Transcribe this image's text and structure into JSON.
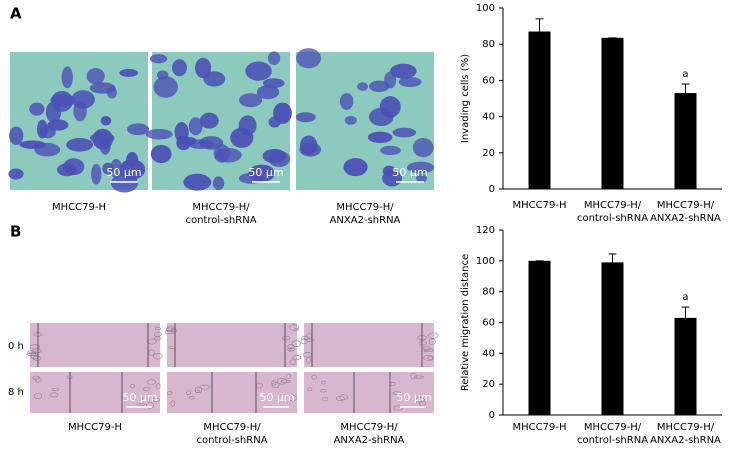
{
  "panel_a": {
    "label": "A",
    "captions": [
      "MHCC79-H",
      "MHCC79-H/\ncontrol-shRNA",
      "MHCC79-H/\nANXA2-shRNA"
    ]
  },
  "panel_b": {
    "label": "B",
    "rows": [
      "0 h",
      "8 h"
    ],
    "captions": [
      "MHCC79-H",
      "MHCC79-H/\ncontrol-shRNA",
      "MHCC79-H/\nANXA2-shRNA"
    ]
  },
  "scale_bar": "50 μm",
  "chart_data": [
    {
      "type": "bar",
      "y_label": "Invading cells (%)",
      "categories": [
        "MHCC79-H",
        "MHCC79-H/\ncontrol-shRNA",
        "MHCC79-H/\nANXA2-shRNA"
      ],
      "values": [
        87,
        83.5,
        53
      ],
      "errors": [
        7,
        0,
        5
      ],
      "value_annotations": [
        null,
        null,
        "a"
      ],
      "color": "#000000",
      "ylim": [
        0,
        100
      ],
      "yticks": [
        0,
        20,
        40,
        60,
        80,
        100
      ],
      "grid": false
    },
    {
      "type": "bar",
      "y_label": "Relative migration distance",
      "categories": [
        "MHCC79-H",
        "MHCC79-H/\ncontrol-shRNA",
        "MHCC79-H/\nANXA2-shRNA"
      ],
      "values": [
        100,
        99,
        63
      ],
      "errors": [
        0,
        5.5,
        7
      ],
      "value_annotations": [
        null,
        null,
        "a"
      ],
      "color": "#000000",
      "ylim": [
        0,
        120
      ],
      "yticks": [
        0,
        20,
        40,
        60,
        80,
        100,
        120
      ],
      "grid": false
    }
  ]
}
